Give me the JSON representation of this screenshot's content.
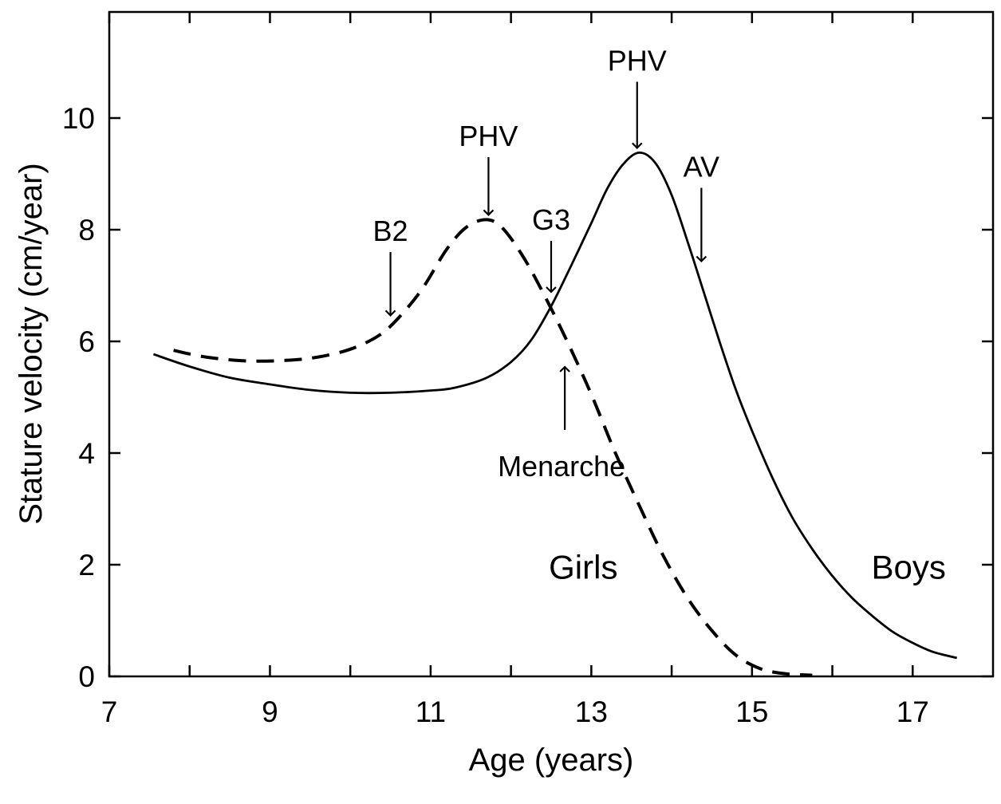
{
  "chart_data": {
    "type": "line",
    "title": "",
    "xlabel": "Age (years)",
    "ylabel": "Stature velocity (cm/year)",
    "xlim": [
      7,
      18
    ],
    "ylim": [
      0,
      11.9
    ],
    "x_ticks_major": [
      7,
      9,
      11,
      13,
      15,
      17
    ],
    "x_ticks_minor": [
      8,
      10,
      12,
      14,
      16
    ],
    "y_ticks": [
      0,
      2,
      4,
      6,
      8,
      10
    ],
    "x_tick_labels": [
      "7",
      "9",
      "11",
      "13",
      "15",
      "17"
    ],
    "y_tick_labels": [
      "0",
      "2",
      "4",
      "6",
      "8",
      "10"
    ],
    "grid": false,
    "legend": "none",
    "series": [
      {
        "name": "Girls",
        "style": "dashed",
        "points": [
          [
            7.8,
            5.84
          ],
          [
            8.2,
            5.72
          ],
          [
            8.7,
            5.65
          ],
          [
            9.2,
            5.66
          ],
          [
            9.6,
            5.72
          ],
          [
            10.0,
            5.86
          ],
          [
            10.35,
            6.1
          ],
          [
            10.6,
            6.42
          ],
          [
            10.9,
            6.95
          ],
          [
            11.2,
            7.65
          ],
          [
            11.45,
            8.05
          ],
          [
            11.7,
            8.18
          ],
          [
            11.9,
            8.02
          ],
          [
            12.15,
            7.52
          ],
          [
            12.4,
            6.87
          ],
          [
            12.7,
            6.0
          ],
          [
            13.0,
            5.05
          ],
          [
            13.3,
            4.0
          ],
          [
            13.6,
            3.05
          ],
          [
            13.9,
            2.15
          ],
          [
            14.2,
            1.4
          ],
          [
            14.5,
            0.82
          ],
          [
            14.8,
            0.38
          ],
          [
            15.1,
            0.14
          ],
          [
            15.4,
            0.05
          ],
          [
            15.75,
            0.02
          ]
        ]
      },
      {
        "name": "Boys",
        "style": "solid",
        "points": [
          [
            7.55,
            5.77
          ],
          [
            8.0,
            5.55
          ],
          [
            8.5,
            5.35
          ],
          [
            9.0,
            5.23
          ],
          [
            9.5,
            5.13
          ],
          [
            10.0,
            5.08
          ],
          [
            10.5,
            5.08
          ],
          [
            11.0,
            5.12
          ],
          [
            11.3,
            5.17
          ],
          [
            11.7,
            5.35
          ],
          [
            12.0,
            5.63
          ],
          [
            12.25,
            6.02
          ],
          [
            12.5,
            6.63
          ],
          [
            12.75,
            7.36
          ],
          [
            13.0,
            8.12
          ],
          [
            13.2,
            8.74
          ],
          [
            13.4,
            9.18
          ],
          [
            13.6,
            9.38
          ],
          [
            13.8,
            9.19
          ],
          [
            14.0,
            8.62
          ],
          [
            14.2,
            7.78
          ],
          [
            14.4,
            6.88
          ],
          [
            14.6,
            5.98
          ],
          [
            14.8,
            5.13
          ],
          [
            15.0,
            4.4
          ],
          [
            15.25,
            3.57
          ],
          [
            15.5,
            2.85
          ],
          [
            15.75,
            2.28
          ],
          [
            16.0,
            1.8
          ],
          [
            16.25,
            1.4
          ],
          [
            16.5,
            1.08
          ],
          [
            16.75,
            0.8
          ],
          [
            17.0,
            0.6
          ],
          [
            17.25,
            0.44
          ],
          [
            17.55,
            0.33
          ]
        ]
      }
    ],
    "series_labels": [
      {
        "text": "Girls",
        "series": "Girls",
        "x": 12.9,
        "y": 1.75
      },
      {
        "text": "Boys",
        "series": "Boys",
        "x": 16.95,
        "y": 1.75
      }
    ],
    "annotations": [
      {
        "label": "B2",
        "series": "Girls",
        "x": 10.5,
        "y": 6.38,
        "direction": "down",
        "label_y": 7.8
      },
      {
        "label": "PHV",
        "series": "Girls",
        "x": 11.72,
        "y": 8.18,
        "direction": "down",
        "label_y": 9.5
      },
      {
        "label": "G3",
        "series": "Boys",
        "x": 12.5,
        "y": 6.8,
        "direction": "down",
        "label_y": 8.0
      },
      {
        "label": "PHV",
        "series": "Boys",
        "x": 13.57,
        "y": 9.38,
        "direction": "down",
        "label_y": 10.85
      },
      {
        "label": "AV",
        "series": "Boys",
        "x": 14.37,
        "y": 7.35,
        "direction": "down",
        "label_y": 8.95
      },
      {
        "label": "Menarche",
        "series": "Girls",
        "x": 12.67,
        "y": 5.6,
        "direction": "up",
        "label_y": 3.8
      }
    ]
  }
}
